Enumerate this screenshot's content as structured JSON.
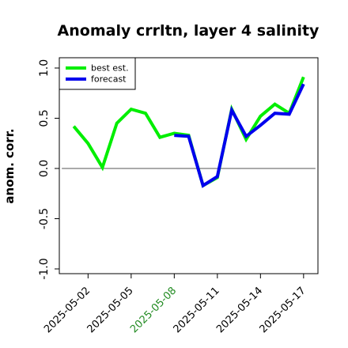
{
  "chart_data": {
    "type": "line",
    "title": "Anomaly crrltn, layer 4 salinity",
    "xlabel": "",
    "ylabel": "anom. corr.",
    "x": [
      "2025-05-01",
      "2025-05-02",
      "2025-05-03",
      "2025-05-04",
      "2025-05-05",
      "2025-05-06",
      "2025-05-07",
      "2025-05-08",
      "2025-05-09",
      "2025-05-10",
      "2025-05-11",
      "2025-05-12",
      "2025-05-13",
      "2025-05-14",
      "2025-05-15",
      "2025-05-16",
      "2025-05-17"
    ],
    "xlim": [
      "2025-04-30",
      "2025-05-18"
    ],
    "x_ticks": [
      "2025-05-02",
      "2025-05-05",
      "2025-05-08",
      "2025-05-11",
      "2025-05-14",
      "2025-05-17"
    ],
    "highlight_tick": "2025-05-08",
    "highlight_color": "#228B22",
    "ylim": [
      -1.0,
      1.0
    ],
    "y_ticks": [
      -1.0,
      -0.5,
      0.0,
      0.5,
      1.0
    ],
    "y_tick_labels": [
      "-1.0",
      "-0.5",
      "0.0",
      "0.5",
      "1.0"
    ],
    "reference_line": 0.0,
    "grid": false,
    "legend_position": "top-left",
    "series": [
      {
        "name": "best est.",
        "color": "#00ee00",
        "values": [
          0.42,
          0.25,
          0.01,
          0.45,
          0.59,
          0.55,
          0.31,
          0.35,
          0.33,
          -0.17,
          -0.09,
          0.59,
          0.29,
          0.52,
          0.64,
          0.55,
          0.91
        ]
      },
      {
        "name": "forecast",
        "color": "#0000ee",
        "values": [
          null,
          null,
          null,
          null,
          null,
          null,
          null,
          0.33,
          0.32,
          -0.17,
          -0.08,
          0.58,
          0.32,
          0.43,
          0.55,
          0.54,
          0.84
        ]
      }
    ]
  }
}
